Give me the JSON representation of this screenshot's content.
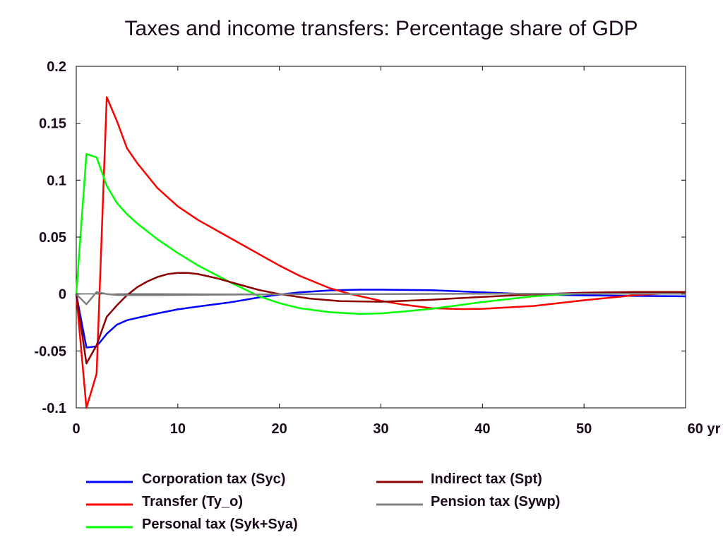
{
  "chart_data": {
    "type": "line",
    "title": "Taxes and income transfers: Percentage share of GDP",
    "xlabel": "",
    "ylabel": "",
    "x_unit_label": "yr",
    "xlim": [
      0,
      60
    ],
    "ylim": [
      -0.1,
      0.2
    ],
    "xticks": [
      0,
      10,
      20,
      30,
      40,
      50,
      60
    ],
    "xtick_labels": [
      "0",
      "10",
      "20",
      "30",
      "40",
      "50",
      "60 yr"
    ],
    "yticks": [
      0.2,
      0.15,
      0.1,
      0.05,
      0,
      -0.05,
      -0.1
    ],
    "ytick_labels": [
      "0.2",
      "0.15",
      "0.1",
      "0.05",
      "0",
      "-0.05",
      "-0.1"
    ],
    "grid": false,
    "legend_position": "bottom",
    "series": [
      {
        "name": "Corporation tax (Syc)",
        "color": "#0000ff",
        "x": [
          0,
          1,
          2,
          3,
          4,
          5,
          6,
          8,
          10,
          12,
          15,
          18,
          20,
          22,
          25,
          28,
          30,
          35,
          40,
          45,
          50,
          55,
          60
        ],
        "y": [
          0,
          -0.047,
          -0.046,
          -0.035,
          -0.027,
          -0.023,
          -0.021,
          -0.017,
          -0.0135,
          -0.011,
          -0.0075,
          -0.003,
          -0.0005,
          0.0015,
          0.0032,
          0.0038,
          0.0038,
          0.0033,
          0.0015,
          -0.0003,
          -0.0012,
          -0.0017,
          -0.002
        ]
      },
      {
        "name": "Transfer (Ty_o)",
        "color": "#ff0000",
        "x": [
          0,
          1,
          2,
          3,
          4,
          5,
          6,
          8,
          10,
          12,
          15,
          18,
          20,
          22,
          25,
          27,
          28,
          30,
          32,
          35,
          38,
          40,
          45,
          50,
          55,
          60
        ],
        "y": [
          0,
          -0.1,
          -0.07,
          0.173,
          0.152,
          0.128,
          0.115,
          0.093,
          0.077,
          0.065,
          0.05,
          0.035,
          0.025,
          0.016,
          0.005,
          0.0,
          -0.002,
          -0.006,
          -0.009,
          -0.0125,
          -0.0132,
          -0.013,
          -0.0105,
          -0.0055,
          -0.001,
          0.0015
        ]
      },
      {
        "name": "Personal tax (Syk+Sya)",
        "color": "#00ff00",
        "x": [
          0,
          1,
          2,
          3,
          4,
          5,
          6,
          8,
          10,
          12,
          15,
          18,
          20,
          22,
          25,
          28,
          30,
          32,
          35,
          40,
          45,
          50,
          55,
          60
        ],
        "y": [
          0,
          0.123,
          0.12,
          0.095,
          0.08,
          0.07,
          0.062,
          0.048,
          0.036,
          0.025,
          0.011,
          -0.002,
          -0.008,
          -0.0125,
          -0.016,
          -0.0175,
          -0.017,
          -0.0155,
          -0.013,
          -0.007,
          -0.002,
          0.0008,
          0.0015,
          0.0012
        ]
      },
      {
        "name": "Indirect tax (Spt)",
        "color": "#8b0000",
        "x": [
          0,
          1,
          2,
          3,
          4,
          5,
          6,
          7,
          8,
          9,
          10,
          11,
          12,
          14,
          16,
          18,
          20,
          23,
          26,
          30,
          35,
          40,
          45,
          50,
          55,
          60
        ],
        "y": [
          0,
          -0.061,
          -0.045,
          -0.02,
          -0.01,
          -0.001,
          0.006,
          0.011,
          0.015,
          0.0175,
          0.0185,
          0.0185,
          0.0175,
          0.0135,
          0.0085,
          0.0035,
          0.0,
          -0.004,
          -0.0063,
          -0.0068,
          -0.005,
          -0.0025,
          -0.0003,
          0.0012,
          0.0018,
          0.0018
        ]
      },
      {
        "name": "Pension tax (Sywp)",
        "color": "#808080",
        "x": [
          0,
          1,
          2,
          3,
          4,
          5,
          8,
          10,
          15,
          20,
          30,
          40,
          50,
          60
        ],
        "y": [
          0,
          -0.009,
          0.0018,
          0.0,
          -0.0008,
          -0.001,
          -0.001,
          -0.0008,
          -0.0005,
          -0.0002,
          0.0,
          0.0002,
          0.0003,
          0.0003
        ]
      }
    ]
  }
}
